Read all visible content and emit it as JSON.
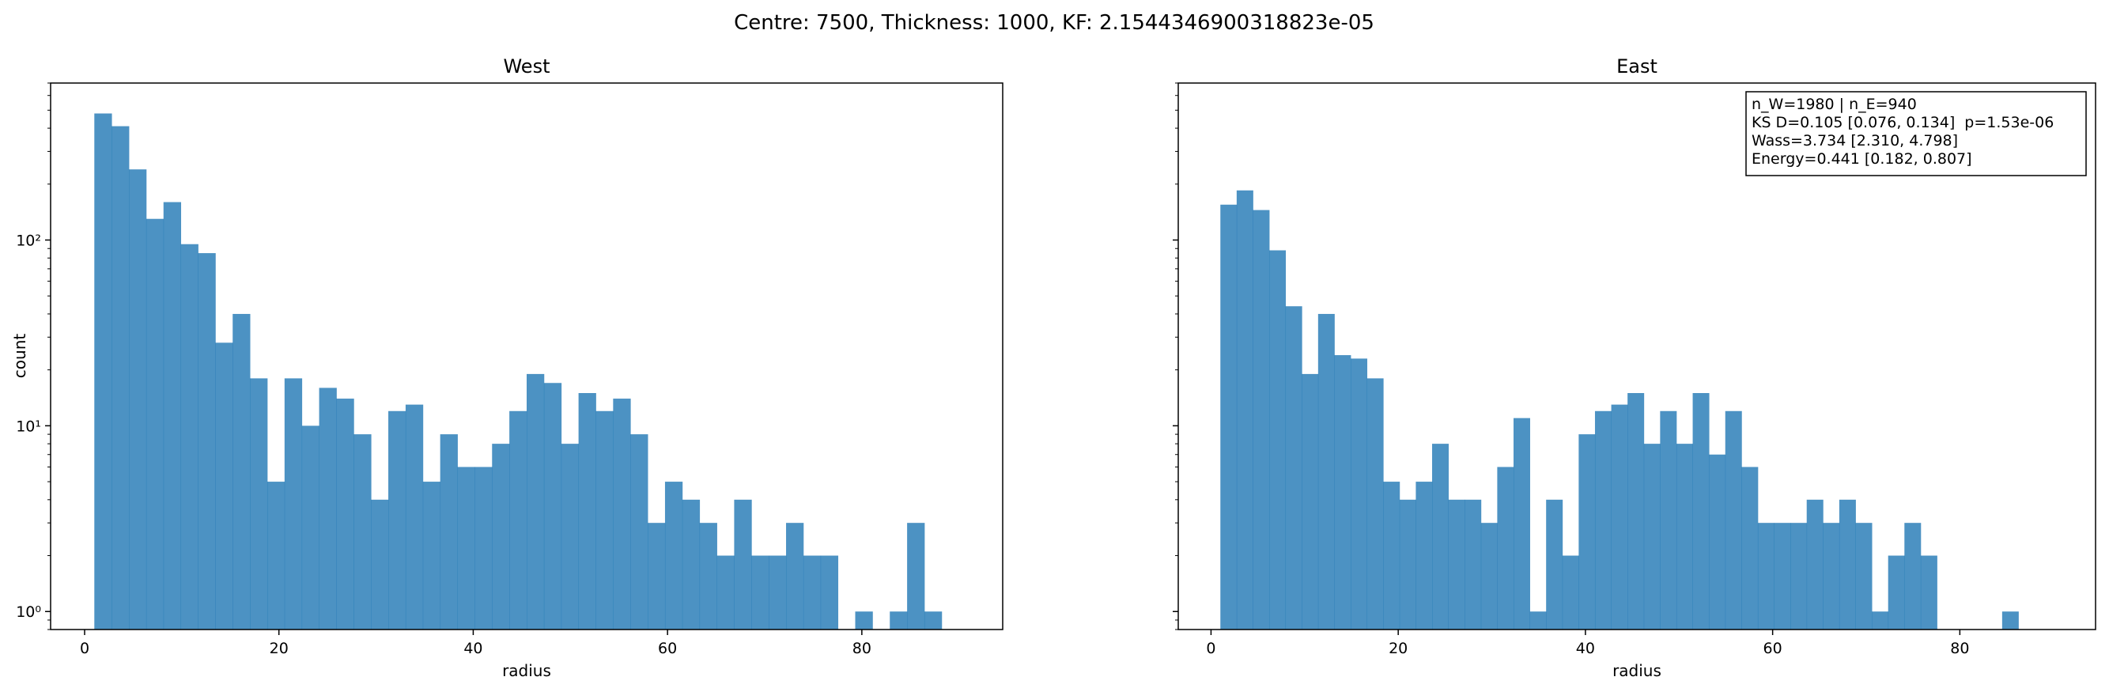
{
  "figure": {
    "title": "Centre: 7500, Thickness: 1000, KF: 2.1544346900318823e-05",
    "stats_box": [
      "n_W=1980 | n_E=940",
      "KS D=0.105 [0.076, 0.134]  p=1.53e-06",
      "Wass=3.734 [2.310, 4.798]",
      "Energy=0.441 [0.182, 0.807]"
    ]
  },
  "chart_data": [
    {
      "type": "bar",
      "title": "West",
      "xlabel": "radius",
      "ylabel": "count",
      "y_scale": "log",
      "xlim": [
        -3.5,
        94.5
      ],
      "ylim": [
        0.8,
        700
      ],
      "xticks": [
        0,
        20,
        40,
        60,
        80
      ],
      "xtick_labels": [
        "0",
        "20",
        "40",
        "60",
        "80"
      ],
      "yticks": [
        1,
        10,
        100
      ],
      "ytick_labels": [
        "10⁰",
        "10¹",
        "10²"
      ],
      "bin_width": 1.78,
      "bin_starts": [
        1.0,
        2.78,
        4.56,
        6.34,
        8.12,
        9.9,
        11.68,
        13.46,
        15.24,
        17.02,
        18.8,
        20.58,
        22.36,
        24.14,
        25.92,
        27.7,
        29.48,
        31.26,
        33.04,
        34.82,
        36.6,
        38.38,
        40.16,
        41.94,
        43.72,
        45.5,
        47.28,
        49.06,
        50.84,
        52.62,
        54.4,
        56.18,
        57.96,
        59.74,
        61.52,
        63.3,
        65.08,
        66.86,
        68.64,
        70.42,
        72.2,
        73.98,
        75.76,
        77.54,
        79.32,
        81.1,
        82.88,
        84.66,
        86.44,
        88.22
      ],
      "values": [
        480,
        410,
        240,
        130,
        160,
        95,
        85,
        28,
        40,
        18,
        5,
        18,
        10,
        16,
        14,
        9,
        4,
        12,
        13,
        5,
        9,
        6,
        6,
        8,
        12,
        19,
        17,
        8,
        15,
        12,
        14,
        9,
        3,
        5,
        4,
        3,
        2,
        4,
        2,
        2,
        3,
        2,
        2,
        0,
        1,
        0,
        1,
        3,
        1,
        0
      ],
      "grid": false,
      "legend": "none"
    },
    {
      "type": "bar",
      "title": "East",
      "xlabel": "radius",
      "ylabel": "",
      "y_scale": "log",
      "xlim": [
        -3.5,
        94.5
      ],
      "ylim": [
        0.8,
        700
      ],
      "xticks": [
        0,
        20,
        40,
        60,
        80
      ],
      "xtick_labels": [
        "0",
        "20",
        "40",
        "60",
        "80"
      ],
      "yticks": [
        1,
        10,
        100
      ],
      "ytick_labels": [
        "",
        "",
        ""
      ],
      "bin_width": 1.74,
      "bin_starts": [
        1.0,
        2.74,
        4.48,
        6.22,
        7.96,
        9.7,
        11.44,
        13.18,
        14.92,
        16.66,
        18.4,
        20.14,
        21.88,
        23.62,
        25.36,
        27.1,
        28.84,
        30.58,
        32.32,
        34.06,
        35.8,
        37.54,
        39.28,
        41.02,
        42.76,
        44.5,
        46.24,
        47.98,
        49.72,
        51.46,
        53.2,
        54.94,
        56.68,
        58.42,
        60.16,
        61.9,
        63.64,
        65.38,
        67.12,
        68.86,
        70.6,
        72.34,
        74.08,
        75.82,
        77.56,
        79.3,
        81.04,
        82.78,
        84.52,
        86.26
      ],
      "values": [
        155,
        185,
        145,
        88,
        44,
        19,
        40,
        24,
        23,
        18,
        5,
        4,
        5,
        8,
        4,
        4,
        3,
        6,
        11,
        1,
        4,
        2,
        9,
        12,
        13,
        15,
        8,
        12,
        8,
        15,
        7,
        12,
        6,
        3,
        3,
        3,
        4,
        3,
        4,
        3,
        1,
        2,
        3,
        2,
        0,
        0,
        0,
        0,
        1,
        0
      ],
      "grid": false,
      "legend": "none"
    }
  ]
}
